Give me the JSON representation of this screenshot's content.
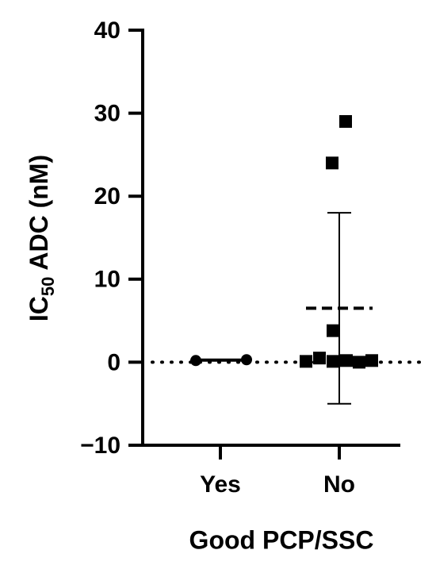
{
  "chart_data": {
    "type": "scatter",
    "y_label": {
      "main": "IC",
      "subscript": "50",
      "rest": "ADC (nM)"
    },
    "x_label": "Good PCP/SSC",
    "categories": [
      "Yes",
      "No"
    ],
    "groups": [
      {
        "marker": "circle",
        "color": "#000000",
        "values": [
          0.2,
          0.3
        ],
        "mean": 0.25,
        "sd": 0.05,
        "mean_style": "solid"
      },
      {
        "marker": "square",
        "color": "#000000",
        "values": [
          29,
          24,
          3.8,
          0.5,
          0.1,
          0.1,
          0.2,
          0,
          0.2
        ],
        "mean": 6.5,
        "sd": 11.5,
        "mean_style": "dashed"
      }
    ],
    "reference_line": 0,
    "ylim": [
      -10,
      40
    ],
    "yticks": [
      {
        "value": -10,
        "label": "−10"
      },
      0,
      10,
      20,
      30,
      40
    ]
  }
}
